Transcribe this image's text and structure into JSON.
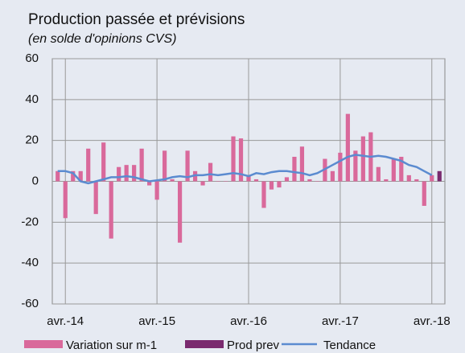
{
  "chart_data": {
    "type": "bar",
    "title": "Production passée et prévisions",
    "subtitle": "(en solde d'opinions CVS)",
    "categories": [
      null,
      "avr.-14",
      null,
      null,
      null,
      null,
      null,
      null,
      null,
      null,
      null,
      null,
      null,
      "avr.-15",
      null,
      null,
      null,
      null,
      null,
      null,
      null,
      null,
      null,
      null,
      null,
      "avr.-16",
      null,
      null,
      null,
      null,
      null,
      null,
      null,
      null,
      null,
      null,
      null,
      "avr.-17",
      null,
      null,
      null,
      null,
      null,
      null,
      null,
      null,
      null,
      null,
      null,
      "avr.-18",
      null
    ],
    "series": [
      {
        "name": "Variation sur m-1",
        "type": "bar",
        "color": "#d9699b",
        "values": [
          5,
          -18,
          5,
          5,
          16,
          -16,
          19,
          -28,
          7,
          8,
          8,
          16,
          -2,
          -9,
          15,
          1,
          -30,
          15,
          5,
          -2,
          9,
          0,
          0,
          22,
          21,
          3,
          1,
          -13,
          -4,
          -3,
          2,
          12,
          17,
          1,
          0,
          11,
          5,
          14,
          33,
          15,
          22,
          24,
          7,
          1,
          11,
          12,
          3,
          1,
          -12,
          3,
          null
        ]
      },
      {
        "name": "Prod prev",
        "type": "bar",
        "color": "#7a2a6f",
        "values": [
          null,
          null,
          null,
          null,
          null,
          null,
          null,
          null,
          null,
          null,
          null,
          null,
          null,
          null,
          null,
          null,
          null,
          null,
          null,
          null,
          null,
          null,
          null,
          null,
          null,
          null,
          null,
          null,
          null,
          null,
          null,
          null,
          null,
          null,
          null,
          null,
          null,
          null,
          null,
          null,
          null,
          null,
          null,
          null,
          null,
          null,
          null,
          null,
          null,
          null,
          5
        ]
      },
      {
        "name": "Tendance",
        "type": "line",
        "color": "#5b8bd0",
        "values": [
          5,
          5,
          4,
          0,
          -1,
          0,
          1,
          2,
          2,
          2.5,
          2,
          1,
          0,
          0.5,
          1,
          2,
          2.5,
          2,
          3,
          3,
          3.5,
          3,
          3.5,
          4,
          3.5,
          2.5,
          4,
          3.5,
          4.5,
          5,
          5,
          4.5,
          4,
          3,
          4,
          6,
          8,
          10,
          12,
          13,
          12.5,
          12,
          12.5,
          12,
          11,
          10,
          8,
          7,
          5,
          3,
          null
        ]
      }
    ],
    "ylim": [
      -60,
      60
    ],
    "yticks": [
      -60,
      -40,
      -20,
      0,
      20,
      40,
      60
    ],
    "grid": true
  }
}
